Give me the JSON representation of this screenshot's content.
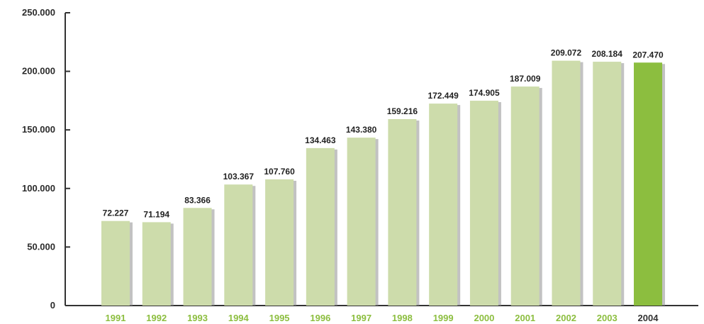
{
  "chart_data": {
    "type": "bar",
    "title": "",
    "xlabel": "",
    "ylabel": "",
    "categories": [
      "1991",
      "1992",
      "1993",
      "1994",
      "1995",
      "1996",
      "1997",
      "1998",
      "1999",
      "2000",
      "2001",
      "2002",
      "2003",
      "2004"
    ],
    "values": [
      72227,
      71194,
      83366,
      103367,
      107760,
      134463,
      143380,
      159216,
      172449,
      174905,
      187009,
      209072,
      208184,
      207470
    ],
    "value_labels": [
      "72.227",
      "71.194",
      "83.366",
      "103.367",
      "107.760",
      "134.463",
      "143.380",
      "159.216",
      "172.449",
      "174.905",
      "187.009",
      "209.072",
      "208.184",
      "207.470"
    ],
    "ylim": [
      0,
      250000
    ],
    "yticks": [
      0,
      50000,
      100000,
      150000,
      200000,
      250000
    ],
    "ytick_labels": [
      "0",
      "50.000",
      "100.000",
      "150.000",
      "200.000",
      "250.000"
    ],
    "grid": false,
    "legend": "none",
    "highlight_category": "2004",
    "colors": {
      "bar": "#cddcab",
      "bar_highlight": "#8cbe3f",
      "bar_shadow": "#9a9a9a",
      "xtick_label": "#8cbe3f",
      "xtick_label_highlight": "#333333",
      "axis": "#333333"
    }
  }
}
